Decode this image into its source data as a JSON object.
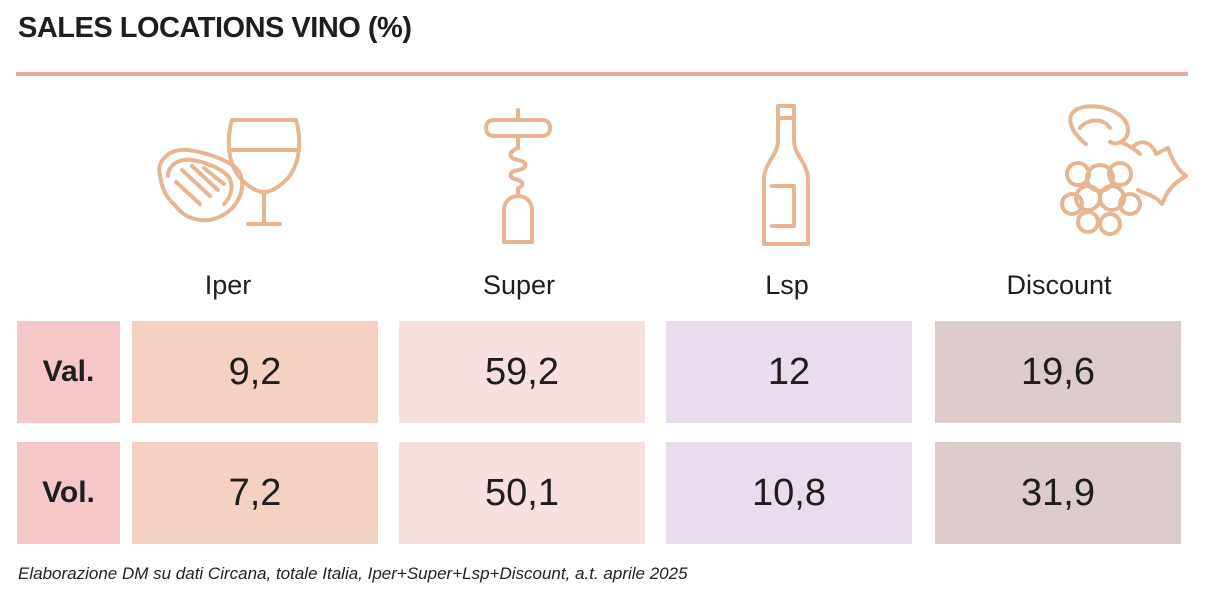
{
  "title": "SALES LOCATIONS VINO (%)",
  "colors": {
    "accent": "#e8a7a3",
    "icon_stroke": "#e7b592",
    "row_label_bg": "#f4c7c8",
    "iper_bg": "#f4d1c3",
    "super_bg": "#f7e0e0",
    "lsp_bg": "#e9dcec",
    "discount_bg": "#dccccc"
  },
  "icons": [
    "steak-and-wine-glass-icon",
    "corkscrew-icon",
    "wine-bottle-icon",
    "grapes-icon"
  ],
  "chart_data": {
    "type": "table",
    "title": "SALES LOCATIONS VINO (%)",
    "columns": [
      "Iper",
      "Super",
      "Lsp",
      "Discount"
    ],
    "rows": [
      {
        "label": "Val.",
        "values": [
          "9,2",
          "59,2",
          "12",
          "19,6"
        ]
      },
      {
        "label": "Vol.",
        "values": [
          "7,2",
          "50,1",
          "10,8",
          "31,9"
        ]
      }
    ]
  },
  "source": "Elaborazione DM su dati Circana, totale Italia, Iper+Super+Lsp+Discount, a.t. aprile 2025"
}
